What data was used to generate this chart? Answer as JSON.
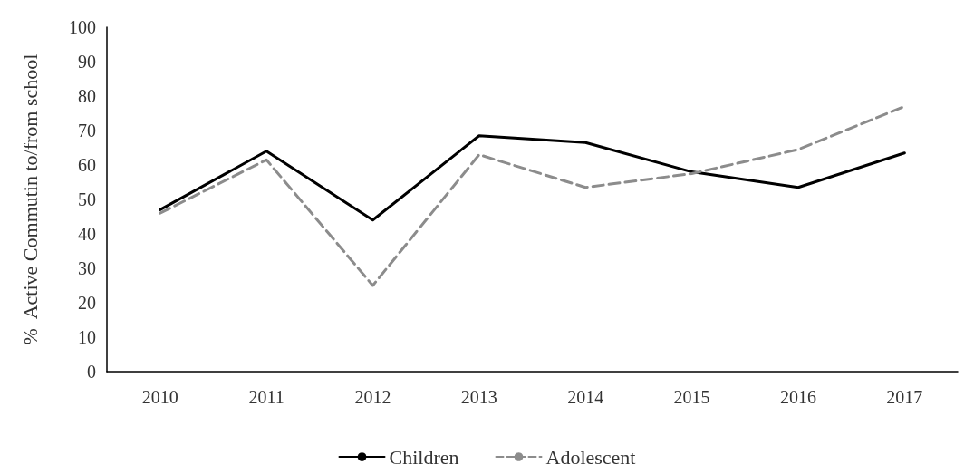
{
  "chart_data": {
    "type": "line",
    "ylabel": "%  Active Commutin to/from school",
    "categories": [
      "2010",
      "2011",
      "2012",
      "2013",
      "2014",
      "2015",
      "2016",
      "2017"
    ],
    "series": [
      {
        "name": "Children",
        "color": "#000000",
        "line_style": "solid",
        "values": [
          47,
          64,
          44,
          68.5,
          66.5,
          58,
          53.5,
          63.5
        ]
      },
      {
        "name": "Adolescent",
        "color": "#8c8c8c",
        "line_style": "dashed",
        "values": [
          46,
          61.5,
          25,
          63,
          53.5,
          57.5,
          64.5,
          77
        ]
      }
    ],
    "ylim": [
      0,
      100
    ],
    "yticks": [
      0,
      10,
      20,
      30,
      40,
      50,
      60,
      70,
      80,
      90,
      100
    ],
    "grid": false,
    "legend": "bottom",
    "marker": "none"
  }
}
